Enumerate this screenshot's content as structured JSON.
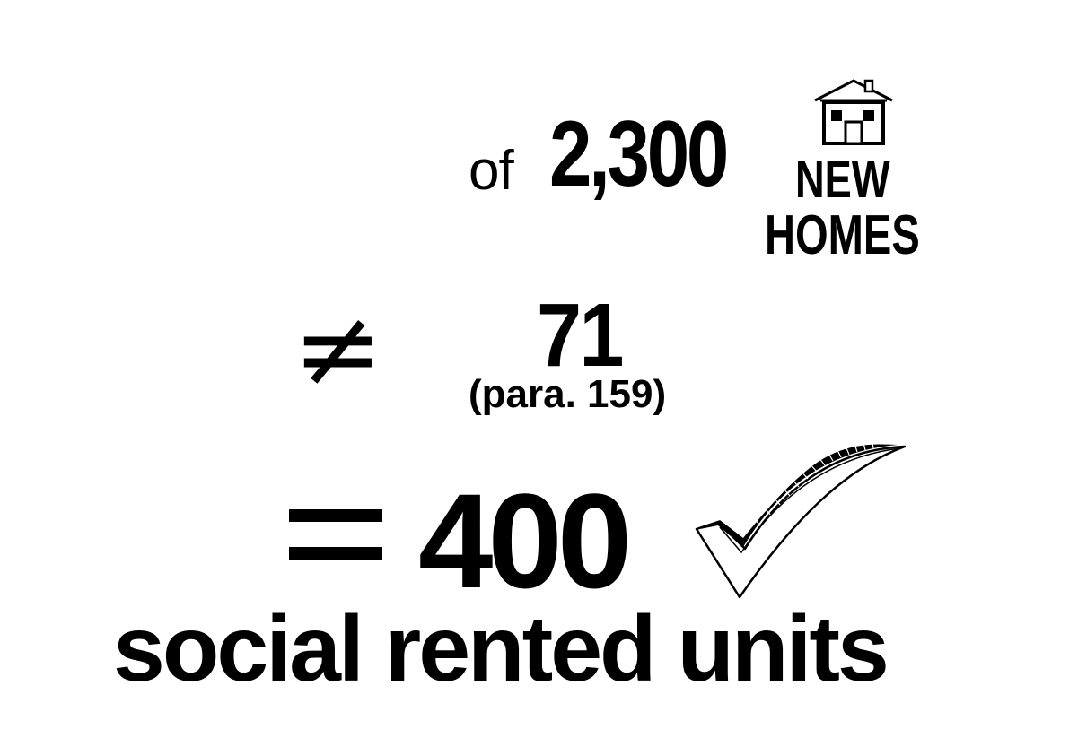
{
  "line1": {
    "prefix": "of",
    "total": "2,300",
    "label_top": "NEW",
    "label_bottom": "HOMES",
    "icon": "house-icon"
  },
  "line2": {
    "symbol": "≠",
    "claimed": "71",
    "reference": "(para. 159)"
  },
  "line3": {
    "symbol": "=",
    "actual": "400",
    "icon": "checkmark-icon"
  },
  "line4": {
    "label": "social rented units"
  },
  "colors": {
    "ink": "#000000",
    "background": "#ffffff"
  }
}
